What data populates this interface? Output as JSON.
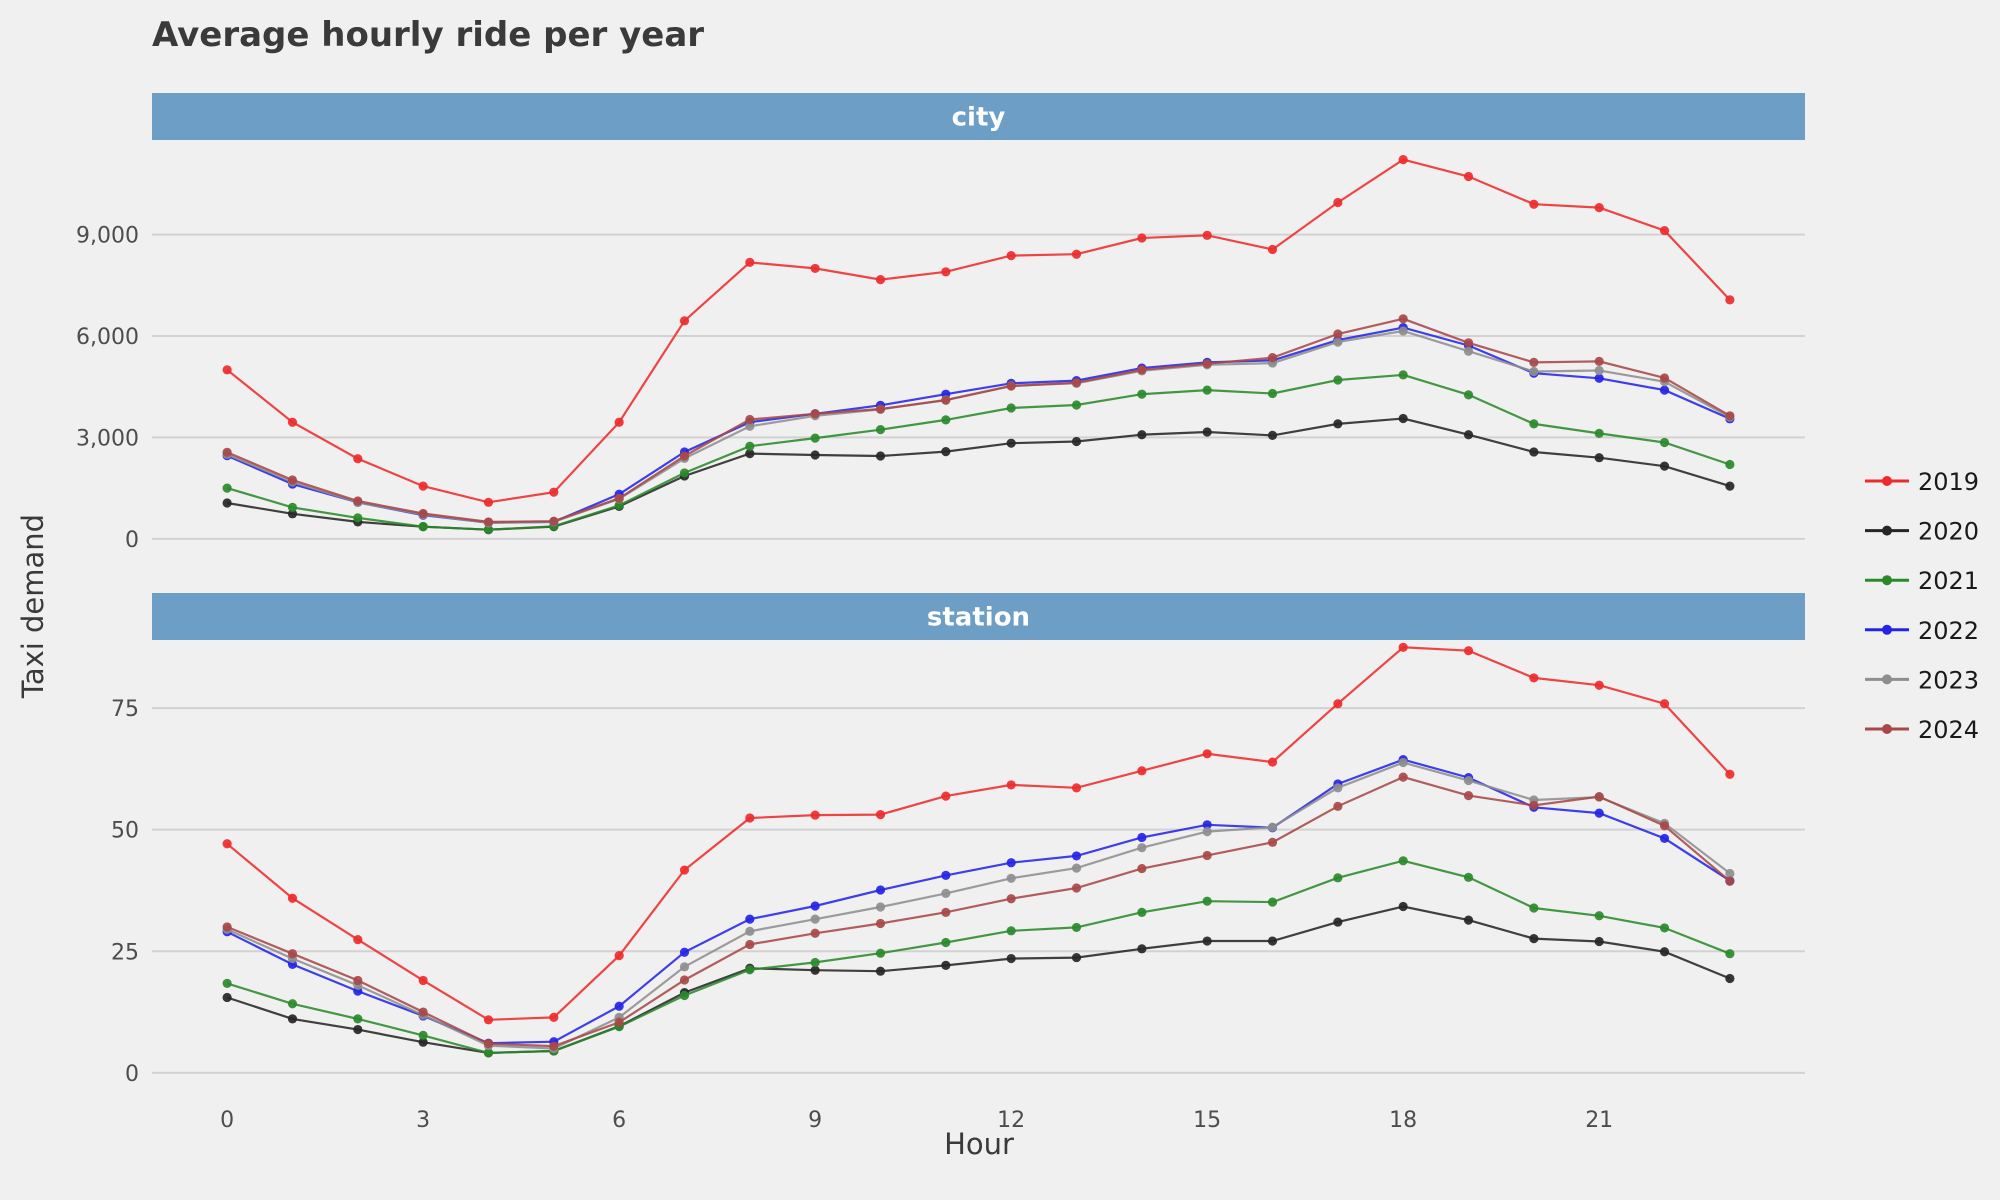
{
  "chart_data": {
    "type": "line",
    "title": "Average hourly ride per year",
    "xlabel": "Hour",
    "ylabel": "Taxi demand",
    "x": [
      0,
      1,
      2,
      3,
      4,
      5,
      6,
      7,
      8,
      9,
      10,
      11,
      12,
      13,
      14,
      15,
      16,
      17,
      18,
      19,
      20,
      21,
      22,
      23
    ],
    "x_ticks": [
      0,
      3,
      6,
      9,
      12,
      15,
      18,
      21
    ],
    "x_tick_labels": [
      "0",
      "3",
      "6",
      "9",
      "12",
      "15",
      "18",
      "21"
    ],
    "xlim": [
      -1.15,
      24.15
    ],
    "legend_position": "right",
    "grid": true,
    "colors": {
      "2019": "#ee2b2b",
      "2020": "#262626",
      "2021": "#2a8a2a",
      "2022": "#2424e8",
      "2023": "#8e8e8e",
      "2024": "#a84848"
    },
    "series_names": [
      "2019",
      "2020",
      "2021",
      "2022",
      "2023",
      "2024"
    ],
    "facets": [
      {
        "label": "city",
        "ylim": [
          -1100,
          11800
        ],
        "y_ticks": [
          0,
          3000,
          6000,
          9000
        ],
        "y_tick_labels": [
          "0",
          "3,000",
          "6,000",
          "9,000"
        ],
        "series": [
          {
            "name": "2019",
            "values": [
              5000,
              3450,
              2370,
              1560,
              1080,
              1380,
              3450,
              6450,
              8180,
              8000,
              7670,
              7900,
              8380,
              8420,
              8900,
              8980,
              8560,
              9950,
              11220,
              10720,
              9900,
              9800,
              9120,
              7070
            ]
          },
          {
            "name": "2020",
            "values": [
              1060,
              740,
              500,
              360,
              270,
              360,
              960,
              1860,
              2520,
              2480,
              2450,
              2580,
              2830,
              2880,
              3080,
              3160,
              3060,
              3400,
              3560,
              3080,
              2570,
              2400,
              2150,
              1560
            ]
          },
          {
            "name": "2021",
            "values": [
              1500,
              930,
              620,
              360,
              270,
              370,
              990,
              1950,
              2740,
              2980,
              3230,
              3520,
              3870,
              3960,
              4280,
              4400,
              4300,
              4700,
              4850,
              4260,
              3400,
              3120,
              2850,
              2200
            ]
          },
          {
            "name": "2022",
            "values": [
              2460,
              1620,
              1080,
              700,
              480,
              500,
              1320,
              2570,
              3450,
              3700,
              3950,
              4280,
              4600,
              4680,
              5050,
              5220,
              5280,
              5880,
              6250,
              5720,
              4900,
              4750,
              4400,
              3550
            ]
          },
          {
            "name": "2023",
            "values": [
              2500,
              1680,
              1080,
              720,
              470,
              500,
              1180,
              2380,
              3330,
              3640,
              3830,
              4110,
              4530,
              4600,
              4970,
              5150,
              5200,
              5820,
              6150,
              5550,
              4950,
              4980,
              4650,
              3600
            ]
          },
          {
            "name": "2024",
            "values": [
              2560,
              1740,
              1120,
              750,
              500,
              520,
              1200,
              2450,
              3530,
              3700,
              3840,
              4100,
              4520,
              4620,
              5000,
              5180,
              5360,
              6060,
              6510,
              5800,
              5220,
              5250,
              4760,
              3640
            ]
          }
        ]
      },
      {
        "label": "station",
        "ylim": [
          -2.5,
          89
        ],
        "y_ticks": [
          0,
          25,
          50,
          75
        ],
        "y_tick_labels": [
          "0",
          "25",
          "50",
          "75"
        ],
        "series": [
          {
            "name": "2019",
            "values": [
              47.1,
              35.9,
              27.4,
              19,
              10.9,
              11.4,
              24.1,
              41.7,
              52.4,
              53,
              53.1,
              56.9,
              59.2,
              58.6,
              62.1,
              65.6,
              63.9,
              75.9,
              87.5,
              86.8,
              81.2,
              79.7,
              75.9,
              61.4
            ]
          },
          {
            "name": "2020",
            "values": [
              15.5,
              11.1,
              8.9,
              6.3,
              4.1,
              4.5,
              9.6,
              16.5,
              21.5,
              21.1,
              20.9,
              22.1,
              23.5,
              23.7,
              25.5,
              27.1,
              27.1,
              31,
              34.2,
              31.4,
              27.6,
              27,
              24.9,
              19.4
            ]
          },
          {
            "name": "2021",
            "values": [
              18.4,
              14.2,
              11.1,
              7.7,
              4.1,
              4.5,
              9.5,
              15.9,
              21.2,
              22.7,
              24.6,
              26.8,
              29.2,
              29.9,
              33,
              35.3,
              35.1,
              40.1,
              43.6,
              40.2,
              33.9,
              32.3,
              29.8,
              24.5
            ]
          },
          {
            "name": "2022",
            "values": [
              29,
              22.3,
              16.8,
              11.7,
              6.1,
              6.4,
              13.7,
              24.8,
              31.6,
              34.3,
              37.6,
              40.6,
              43.2,
              44.6,
              48.4,
              51,
              50.4,
              59.4,
              64.4,
              60.7,
              54.6,
              53.4,
              48.2,
              39.5
            ]
          },
          {
            "name": "2023",
            "values": [
              29.5,
              23.5,
              18,
              11.9,
              5.6,
              5,
              11.4,
              21.8,
              29.1,
              31.6,
              34.1,
              36.9,
              40,
              42.1,
              46.3,
              49.6,
              50.5,
              58.6,
              63.8,
              60.1,
              56.1,
              56.7,
              51.3,
              41
            ]
          },
          {
            "name": "2024",
            "values": [
              30,
              24.5,
              19,
              12.5,
              6,
              5.5,
              10.4,
              19.1,
              26.4,
              28.7,
              30.7,
              33,
              35.8,
              38,
              42,
              44.7,
              47.4,
              54.8,
              60.8,
              57,
              55,
              56.8,
              50.8,
              39.4
            ]
          }
        ]
      }
    ]
  }
}
